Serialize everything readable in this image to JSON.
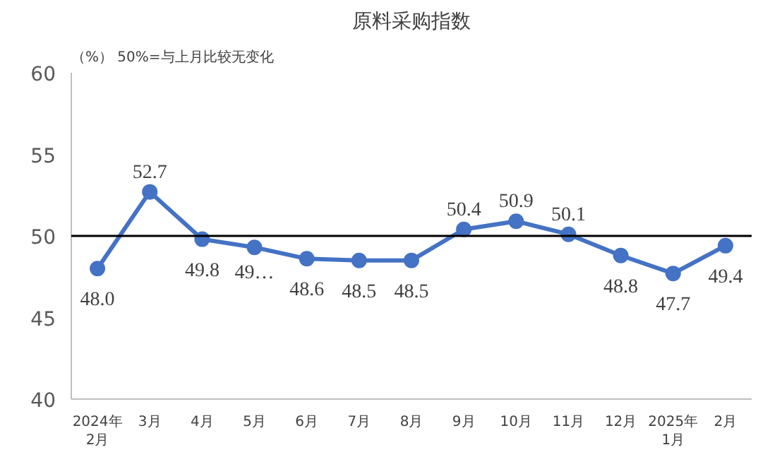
{
  "chart_data": {
    "type": "line",
    "title": "原料采购指数",
    "annotations": [
      "（%） 50%=与上月比较无变化"
    ],
    "categories": [
      "2024年\n2月",
      "3月",
      "4月",
      "5月",
      "6月",
      "7月",
      "8月",
      "9月",
      "10月",
      "11月",
      "12月",
      "2025年\n1月",
      "2月"
    ],
    "series": [
      {
        "color": "#4472c4",
        "values": [
          48.0,
          52.7,
          49.8,
          49.3,
          48.6,
          48.5,
          48.5,
          50.4,
          50.9,
          50.1,
          48.8,
          47.7,
          49.4
        ],
        "value_labels": [
          "48.0",
          "52.7",
          "49.8",
          "49…",
          "48.6",
          "48.5",
          "48.5",
          "50.4",
          "50.9",
          "50.1",
          "48.8",
          "47.7",
          "49.4"
        ]
      }
    ],
    "ylim": [
      40,
      60
    ],
    "yticks": [
      40,
      45,
      50,
      55,
      60
    ],
    "ref_lines": [
      {
        "axis": "y",
        "value": 50,
        "color": "#000000"
      }
    ],
    "marker": "circle"
  }
}
